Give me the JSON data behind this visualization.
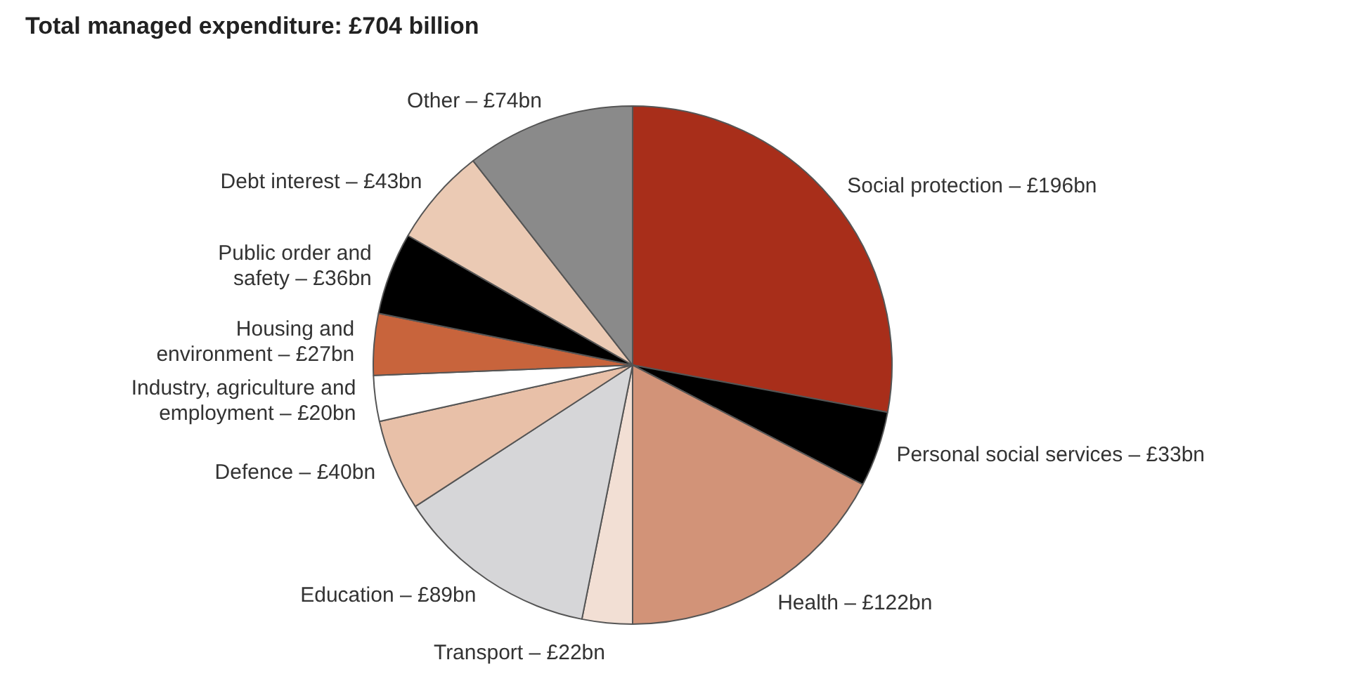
{
  "chart_data": {
    "type": "pie",
    "title": "Total managed expenditure: £704 billion",
    "categories": [
      "Social protection –",
      "Personal social services –",
      "Health –",
      "Transport –",
      "Education –",
      "Defence –",
      "Industry, agriculture and employment –",
      "Housing and environment –",
      "Public order and safety –",
      "Debt interest –",
      "Other –"
    ],
    "values": [
      196,
      33,
      122,
      22,
      89,
      40,
      20,
      27,
      36,
      43,
      74
    ],
    "value_labels": [
      "£196bn",
      "£33bn",
      "£122bn",
      "£22bn",
      "£89bn",
      "£40bn",
      "£20bn",
      "£27bn",
      "£36bn",
      "£43bn",
      "£74bn"
    ],
    "colors": [
      "#a82e1a",
      "#000000",
      "#d29378",
      "#f2dfd4",
      "#d6d6d8",
      "#e8c0a8",
      "#ffffff",
      "#c8643c",
      "#000000",
      "#ebcab4",
      "#8a8a8a"
    ],
    "legend": false
  }
}
